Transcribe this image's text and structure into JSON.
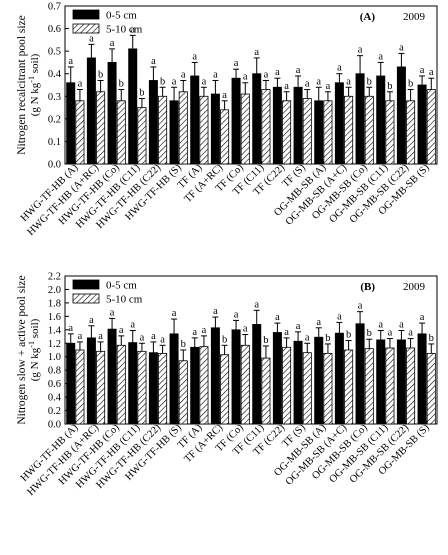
{
  "chart_data": [
    {
      "type": "bar",
      "panel_label": "(A)",
      "year": "2009",
      "ylabel_main": "Nitrogen recalcitrant pool size",
      "ylabel_unit_pre": "(g N kg",
      "ylabel_unit_sup": "-1",
      "ylabel_unit_post": " soil)",
      "ylim": [
        0,
        0.7
      ],
      "yticks": [
        "0.0",
        "0.1",
        "0.2",
        "0.3",
        "0.4",
        "0.5",
        "0.6",
        "0.7"
      ],
      "legend_position": "top-left",
      "categories": [
        "HWG-TF-HB (A)",
        "HWG-TF-HB (A+RC)",
        "HWG-TF-HB (Co)",
        "HWG-TF-HB (C11)",
        "HWG-TF-HB (C22)",
        "HWG-TF-HB (S)",
        "TF (A)",
        "TF (A+RC)",
        "TF (Co)",
        "TF (C11)",
        "TF (C22)",
        "TF (S)",
        "OG-MB-SB (A)",
        "OG-MB-SB (A+C)",
        "OG-MB-SB (Co)",
        "OG-MB-SB (C11)",
        "OG-MB-SB (C22)",
        "OG-MB-SB (S)"
      ],
      "series": [
        {
          "name": "0-5 cm",
          "fill": "solid",
          "values": [
            0.36,
            0.47,
            0.45,
            0.51,
            0.37,
            0.28,
            0.39,
            0.31,
            0.38,
            0.4,
            0.34,
            0.34,
            0.28,
            0.36,
            0.4,
            0.39,
            0.43,
            0.35
          ],
          "errors": [
            0.07,
            0.06,
            0.06,
            0.06,
            0.06,
            0.06,
            0.06,
            0.06,
            0.04,
            0.07,
            0.04,
            0.05,
            0.06,
            0.04,
            0.08,
            0.06,
            0.06,
            0.04
          ],
          "letters": [
            "a",
            "a",
            "a",
            "a",
            "a",
            "a",
            "a",
            "a",
            "a",
            "a",
            "a",
            "a",
            "a",
            "a",
            "a",
            "a",
            "a",
            "a"
          ]
        },
        {
          "name": "5-10 cm",
          "fill": "hatched",
          "values": [
            0.28,
            0.32,
            0.28,
            0.25,
            0.3,
            0.32,
            0.3,
            0.24,
            0.31,
            0.33,
            0.28,
            0.29,
            0.28,
            0.3,
            0.3,
            0.28,
            0.28,
            0.33
          ],
          "errors": [
            0.05,
            0.05,
            0.05,
            0.04,
            0.04,
            0.05,
            0.04,
            0.04,
            0.05,
            0.04,
            0.04,
            0.04,
            0.04,
            0.04,
            0.04,
            0.04,
            0.05,
            0.05
          ],
          "letters": [
            "a",
            "b",
            "b",
            "b",
            "b",
            "a",
            "a",
            "a",
            "a",
            "a",
            "a",
            "a",
            "a",
            "a",
            "b",
            "b",
            "b",
            "a"
          ]
        }
      ]
    },
    {
      "type": "bar",
      "panel_label": "(B)",
      "year": "2009",
      "ylabel_main": "Nitrogen slow + active pool size",
      "ylabel_unit_pre": "(g N kg",
      "ylabel_unit_sup": "-1",
      "ylabel_unit_post": " soil)",
      "ylim": [
        0,
        2.2
      ],
      "yticks": [
        "0.0",
        "0.2",
        "0.4",
        "0.6",
        "0.8",
        "1.0",
        "1.2",
        "1.4",
        "1.6",
        "1.8",
        "2.0",
        "2.2"
      ],
      "legend_position": "top-left",
      "categories": [
        "HWG-TF-HB (A)",
        "HWG-TF-HB (A+RC)",
        "HWG-TF-HB (Co)",
        "HWG-TF-HB (C11)",
        "HWG-TF-HB (C22)",
        "HWG-TF-HB (S)",
        "TF (A)",
        "TF (A+RC)",
        "TF (Co)",
        "TF (C11)",
        "TF (C22)",
        "TF (S)",
        "OG-MB-SB (A)",
        "OG-MB-SB (A+C)",
        "OG-MB-SB (Co)",
        "OG-MB-SB (C11)",
        "OG-MB-SB (C22)",
        "OG-MB-SB (S)"
      ],
      "series": [
        {
          "name": "0-5 cm",
          "fill": "solid",
          "values": [
            1.2,
            1.28,
            1.41,
            1.21,
            1.06,
            1.34,
            1.14,
            1.43,
            1.4,
            1.48,
            1.36,
            1.23,
            1.29,
            1.35,
            1.49,
            1.25,
            1.25,
            1.34
          ],
          "errors": [
            0.14,
            0.18,
            0.16,
            0.18,
            0.16,
            0.22,
            0.14,
            0.16,
            0.14,
            0.21,
            0.14,
            0.14,
            0.14,
            0.16,
            0.18,
            0.14,
            0.14,
            0.16
          ],
          "letters": [
            "a",
            "a",
            "a",
            "a",
            "a",
            "a",
            "a",
            "a",
            "a",
            "a",
            "a",
            "a",
            "a",
            "a",
            "a",
            "a",
            "a",
            "a"
          ]
        },
        {
          "name": "5-10 cm",
          "fill": "hatched",
          "values": [
            1.1,
            1.08,
            1.17,
            1.08,
            1.05,
            0.94,
            1.15,
            1.03,
            1.17,
            0.98,
            1.14,
            1.06,
            1.05,
            1.1,
            1.12,
            1.13,
            1.13,
            1.05
          ],
          "errors": [
            0.12,
            0.14,
            0.14,
            0.12,
            0.12,
            0.16,
            0.16,
            0.14,
            0.16,
            0.18,
            0.14,
            0.14,
            0.14,
            0.14,
            0.14,
            0.14,
            0.14,
            0.14
          ],
          "letters": [
            "a",
            "a",
            "a",
            "a",
            "a",
            "b",
            "a",
            "b",
            "a",
            "b",
            "a",
            "a",
            "b",
            "b",
            "b",
            "a",
            "a",
            "b"
          ]
        }
      ]
    }
  ]
}
